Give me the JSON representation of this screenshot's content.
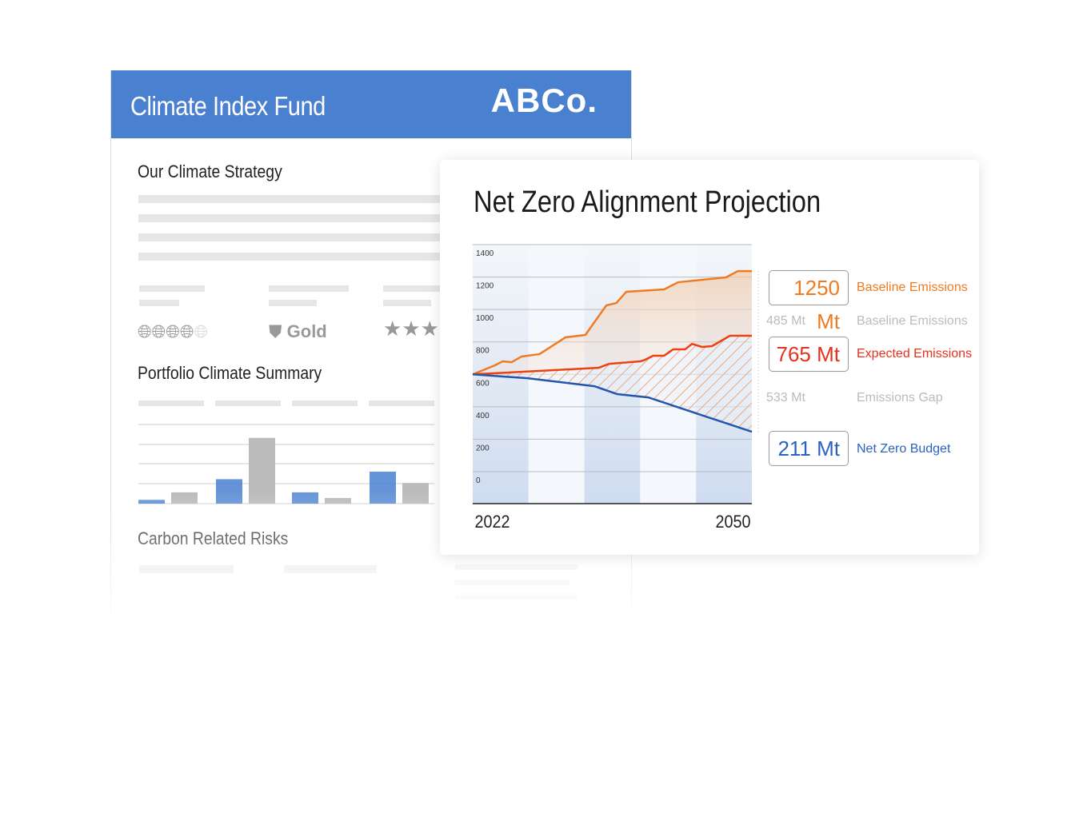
{
  "document": {
    "title": "Climate Index Fund",
    "logo": "ABCo.",
    "sections": [
      "Our Climate Strategy",
      "Portfolio Climate Summary",
      "Carbon Related Risks"
    ],
    "rating_globes": 4,
    "rating_globes_max": 5,
    "medal_label": "Gold",
    "stars": 3,
    "accent_color": "#4a80d0"
  },
  "card": {
    "title": "Net Zero Alignment Projection",
    "callouts": [
      {
        "value": "1250 Mt",
        "label": "Baseline Emissions",
        "color": "#f07a22"
      },
      {
        "value": "485 Mt",
        "label": "Baseline Emissions",
        "color": "#bbbbbb"
      },
      {
        "value": "765 Mt",
        "label": "Expected Emissions",
        "color": "#e8301c"
      },
      {
        "value": "533 Mt",
        "label": "Emissions Gap",
        "color": "#bbbbbb"
      },
      {
        "value": "211 Mt",
        "label": "Net Zero Budget",
        "color": "#2a62c0"
      }
    ]
  },
  "chart_data": [
    {
      "type": "line",
      "x_labels": [
        "2022",
        "2050"
      ],
      "xlim": [
        2022,
        2050
      ],
      "ylim": [
        0,
        1400
      ],
      "y_ticks": [
        "0",
        "200",
        "400",
        "600",
        "800",
        "1000",
        "1200",
        "1400"
      ],
      "grid": true,
      "series": [
        {
          "color": "#f07a22",
          "points": [
            [
              2022,
              600
            ],
            [
              2024.2,
              655
            ],
            [
              2025,
              680
            ],
            [
              2025.9,
              675
            ],
            [
              2026.9,
              710
            ],
            [
              2028.7,
              725
            ],
            [
              2031.3,
              828
            ],
            [
              2033.3,
              843
            ],
            [
              2035.4,
              1025
            ],
            [
              2036.4,
              1040
            ],
            [
              2037.4,
              1109
            ],
            [
              2041.2,
              1124
            ],
            [
              2042.6,
              1168
            ],
            [
              2047.4,
              1198
            ],
            [
              2048.6,
              1237
            ],
            [
              2050,
              1237
            ]
          ]
        },
        {
          "color": "#f0400f",
          "points": [
            [
              2022,
              600
            ],
            [
              2034.6,
              640
            ],
            [
              2035.7,
              665
            ],
            [
              2038.8,
              680
            ],
            [
              2039.3,
              690
            ],
            [
              2040.1,
              715
            ],
            [
              2041.2,
              715
            ],
            [
              2042.1,
              754
            ],
            [
              2043.3,
              754
            ],
            [
              2044,
              788
            ],
            [
              2045,
              769
            ],
            [
              2046,
              774
            ],
            [
              2047.8,
              838
            ],
            [
              2050,
              838
            ]
          ]
        },
        {
          "color": "#2256b0",
          "points": [
            [
              2022,
              600
            ],
            [
              2027.5,
              576
            ],
            [
              2034.2,
              527
            ],
            [
              2036.5,
              478
            ],
            [
              2039.6,
              458
            ],
            [
              2050,
              246
            ]
          ]
        }
      ]
    },
    {
      "type": "bar",
      "series": [
        {
          "color": "#4a80d0",
          "values": [
            1,
            6.5,
            3,
            8.5
          ]
        },
        {
          "color": "#bbbbbb",
          "values": [
            3,
            17.5,
            1.5,
            5.5
          ]
        }
      ],
      "ylim": [
        0,
        20
      ]
    },
    {
      "type": "pie",
      "donuts": [
        {
          "values": [
            99,
            1
          ]
        },
        {
          "values": [
            90,
            10
          ]
        }
      ]
    }
  ]
}
